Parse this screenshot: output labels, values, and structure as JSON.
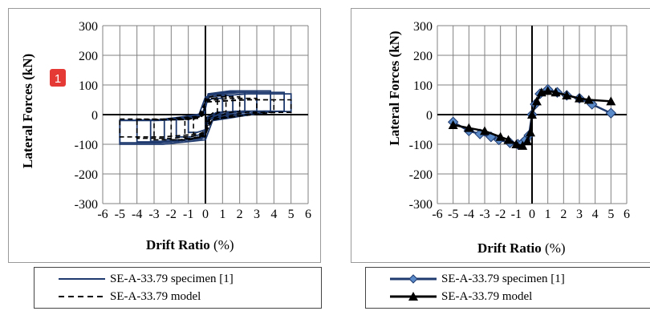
{
  "colors": {
    "specimen": "#1f3a6e",
    "specimen_marker": "#5b8ac9",
    "model": "#000000",
    "grid": "#808080"
  },
  "chart_data": [
    {
      "type": "line",
      "panel": "left",
      "ylabel": "Lateral Forces (kN)",
      "xlabel_bold": "Drift Ratio",
      "xlabel_unit": "(%)",
      "xlim": [
        -6,
        6
      ],
      "ylim": [
        -300,
        300
      ],
      "x_ticks": [
        -6,
        -5,
        -4,
        -3,
        -2,
        -1,
        0,
        1,
        2,
        3,
        4,
        5,
        6
      ],
      "y_ticks": [
        -300,
        -200,
        -100,
        0,
        100,
        200,
        300
      ],
      "grid": true,
      "legend_position": "bottom",
      "series": [
        {
          "name": "SE-A-33.79 specimen [1]",
          "style": "solid",
          "loops": [
            {
              "amp_pos": 1.0,
              "amp_neg": -1.0,
              "f_pos": 55,
              "f_neg": -60
            },
            {
              "amp_pos": 1.6,
              "amp_neg": -1.7,
              "f_pos": 65,
              "f_neg": -75
            },
            {
              "amp_pos": 2.3,
              "amp_neg": -2.4,
              "f_pos": 75,
              "f_neg": -85
            },
            {
              "amp_pos": 3.0,
              "amp_neg": -3.2,
              "f_pos": 80,
              "f_neg": -90
            },
            {
              "amp_pos": 3.8,
              "amp_neg": -4.0,
              "f_pos": 80,
              "f_neg": -92
            },
            {
              "amp_pos": 4.6,
              "amp_neg": -5.0,
              "f_pos": 75,
              "f_neg": -95
            },
            {
              "amp_pos": 5.0,
              "amp_neg": -5.0,
              "f_pos": 70,
              "f_neg": -100
            }
          ]
        },
        {
          "name": "SE-A-33.79 model",
          "style": "dashed",
          "loops": [
            {
              "amp_pos": 0.7,
              "amp_neg": -0.7,
              "f_pos": 55,
              "f_neg": -65
            },
            {
              "amp_pos": 1.2,
              "amp_neg": -1.2,
              "f_pos": 65,
              "f_neg": -80
            },
            {
              "amp_pos": 2.0,
              "amp_neg": -2.0,
              "f_pos": 60,
              "f_neg": -85
            },
            {
              "amp_pos": 3.0,
              "amp_neg": -3.0,
              "f_pos": 55,
              "f_neg": -85
            },
            {
              "amp_pos": 4.0,
              "amp_neg": -4.0,
              "f_pos": 50,
              "f_neg": -80
            },
            {
              "amp_pos": 5.0,
              "amp_neg": -5.0,
              "f_pos": 50,
              "f_neg": -75
            }
          ]
        }
      ],
      "annotation": "1"
    },
    {
      "type": "line",
      "panel": "right",
      "ylabel": "Lateral Forces (kN)",
      "xlabel_bold": "Drift Ratio",
      "xlabel_unit": "(%)",
      "xlim": [
        -6,
        6
      ],
      "ylim": [
        -300,
        300
      ],
      "x_ticks": [
        -6,
        -5,
        -4,
        -3,
        -2,
        -1,
        0,
        1,
        2,
        3,
        4,
        5,
        6
      ],
      "y_ticks": [
        -300,
        -200,
        -100,
        0,
        100,
        200,
        300
      ],
      "grid": true,
      "legend_position": "bottom",
      "series": [
        {
          "name": "SE-A-33.79 specimen [1]",
          "marker": "diamond",
          "x": [
            -5.0,
            -4.0,
            -3.3,
            -2.6,
            -2.1,
            -1.4,
            -0.9,
            -0.6,
            -0.4,
            -0.2,
            0.0,
            0.2,
            0.5,
            1.0,
            1.6,
            2.2,
            3.0,
            3.8,
            5.0
          ],
          "y": [
            -25,
            -55,
            -65,
            -75,
            -85,
            -95,
            -100,
            -95,
            -85,
            -70,
            0,
            35,
            70,
            85,
            75,
            65,
            55,
            35,
            5
          ]
        },
        {
          "name": "SE-A-33.79 model",
          "marker": "triangle",
          "x": [
            -5.0,
            -4.0,
            -3.0,
            -2.0,
            -1.5,
            -1.0,
            -0.6,
            -0.3,
            -0.1,
            0.0,
            0.3,
            0.6,
            1.0,
            1.5,
            2.2,
            3.0,
            3.6,
            5.0
          ],
          "y": [
            -35,
            -45,
            -55,
            -75,
            -85,
            -100,
            -105,
            -90,
            -60,
            0,
            45,
            75,
            80,
            75,
            65,
            55,
            50,
            45
          ]
        }
      ]
    }
  ]
}
